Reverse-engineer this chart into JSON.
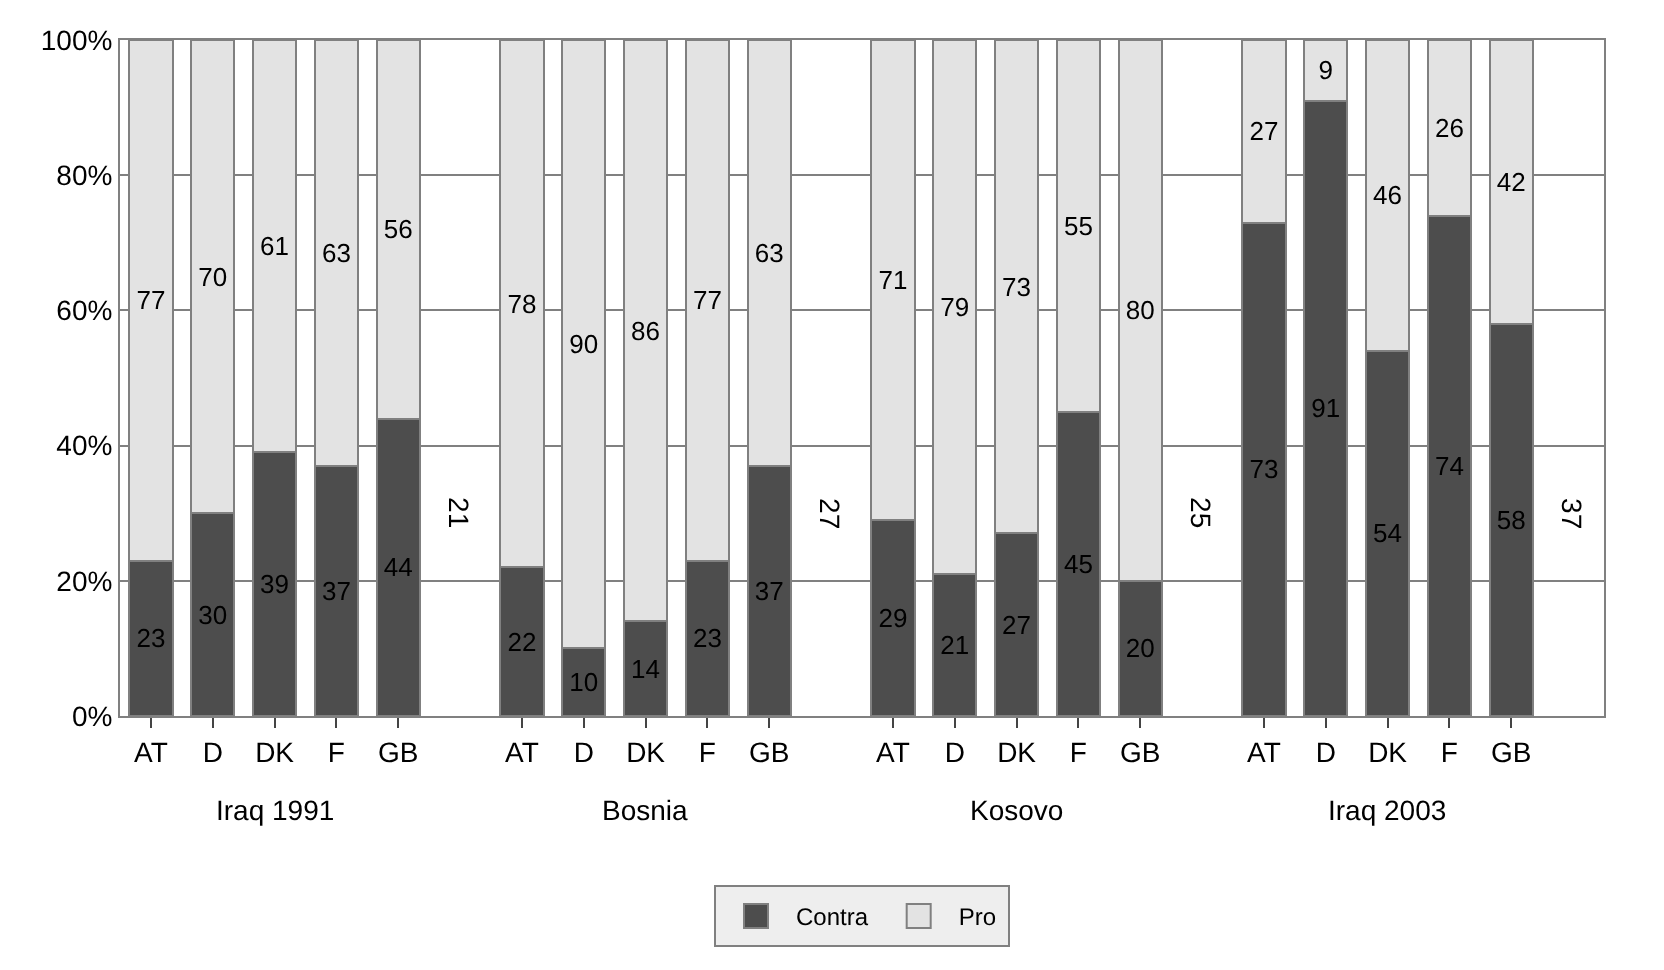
{
  "chart_data": {
    "type": "bar",
    "stacked": true,
    "data_labels": true,
    "grid": "y",
    "legend": "bottom",
    "categories": [
      "AT",
      "D",
      "DK",
      "F",
      "GB",
      null,
      "AT",
      "D",
      "DK",
      "F",
      "GB",
      null,
      "AT",
      "D",
      "DK",
      "F",
      "GB",
      null,
      "AT",
      "D",
      "DK",
      "F",
      "GB",
      null
    ],
    "series": [
      {
        "name": "Contra",
        "color": "#4d4d4d",
        "values": [
          23,
          30,
          39,
          37,
          44,
          null,
          22,
          10,
          14,
          23,
          37,
          null,
          29,
          21,
          27,
          45,
          20,
          null,
          73,
          91,
          54,
          74,
          58,
          null
        ]
      },
      {
        "name": "Pro",
        "color": "#e3e3e3",
        "values": [
          77,
          70,
          61,
          63,
          56,
          null,
          78,
          90,
          86,
          77,
          63,
          null,
          71,
          79,
          73,
          55,
          80,
          null,
          27,
          9,
          46,
          26,
          42,
          null
        ]
      }
    ],
    "ylim": [
      0,
      100
    ],
    "yticks": [
      {
        "value": 0,
        "label": "0%"
      },
      {
        "value": 20,
        "label": "20%"
      },
      {
        "value": 40,
        "label": "40%"
      },
      {
        "value": 60,
        "label": "60%"
      },
      {
        "value": 80,
        "label": "80%"
      },
      {
        "value": 100,
        "label": "100%"
      }
    ],
    "annotations": [
      "Iraq 1991",
      "Bosnia",
      "Kosovo",
      "Iraq 2003",
      "21",
      "27",
      "25",
      "37"
    ]
  }
}
